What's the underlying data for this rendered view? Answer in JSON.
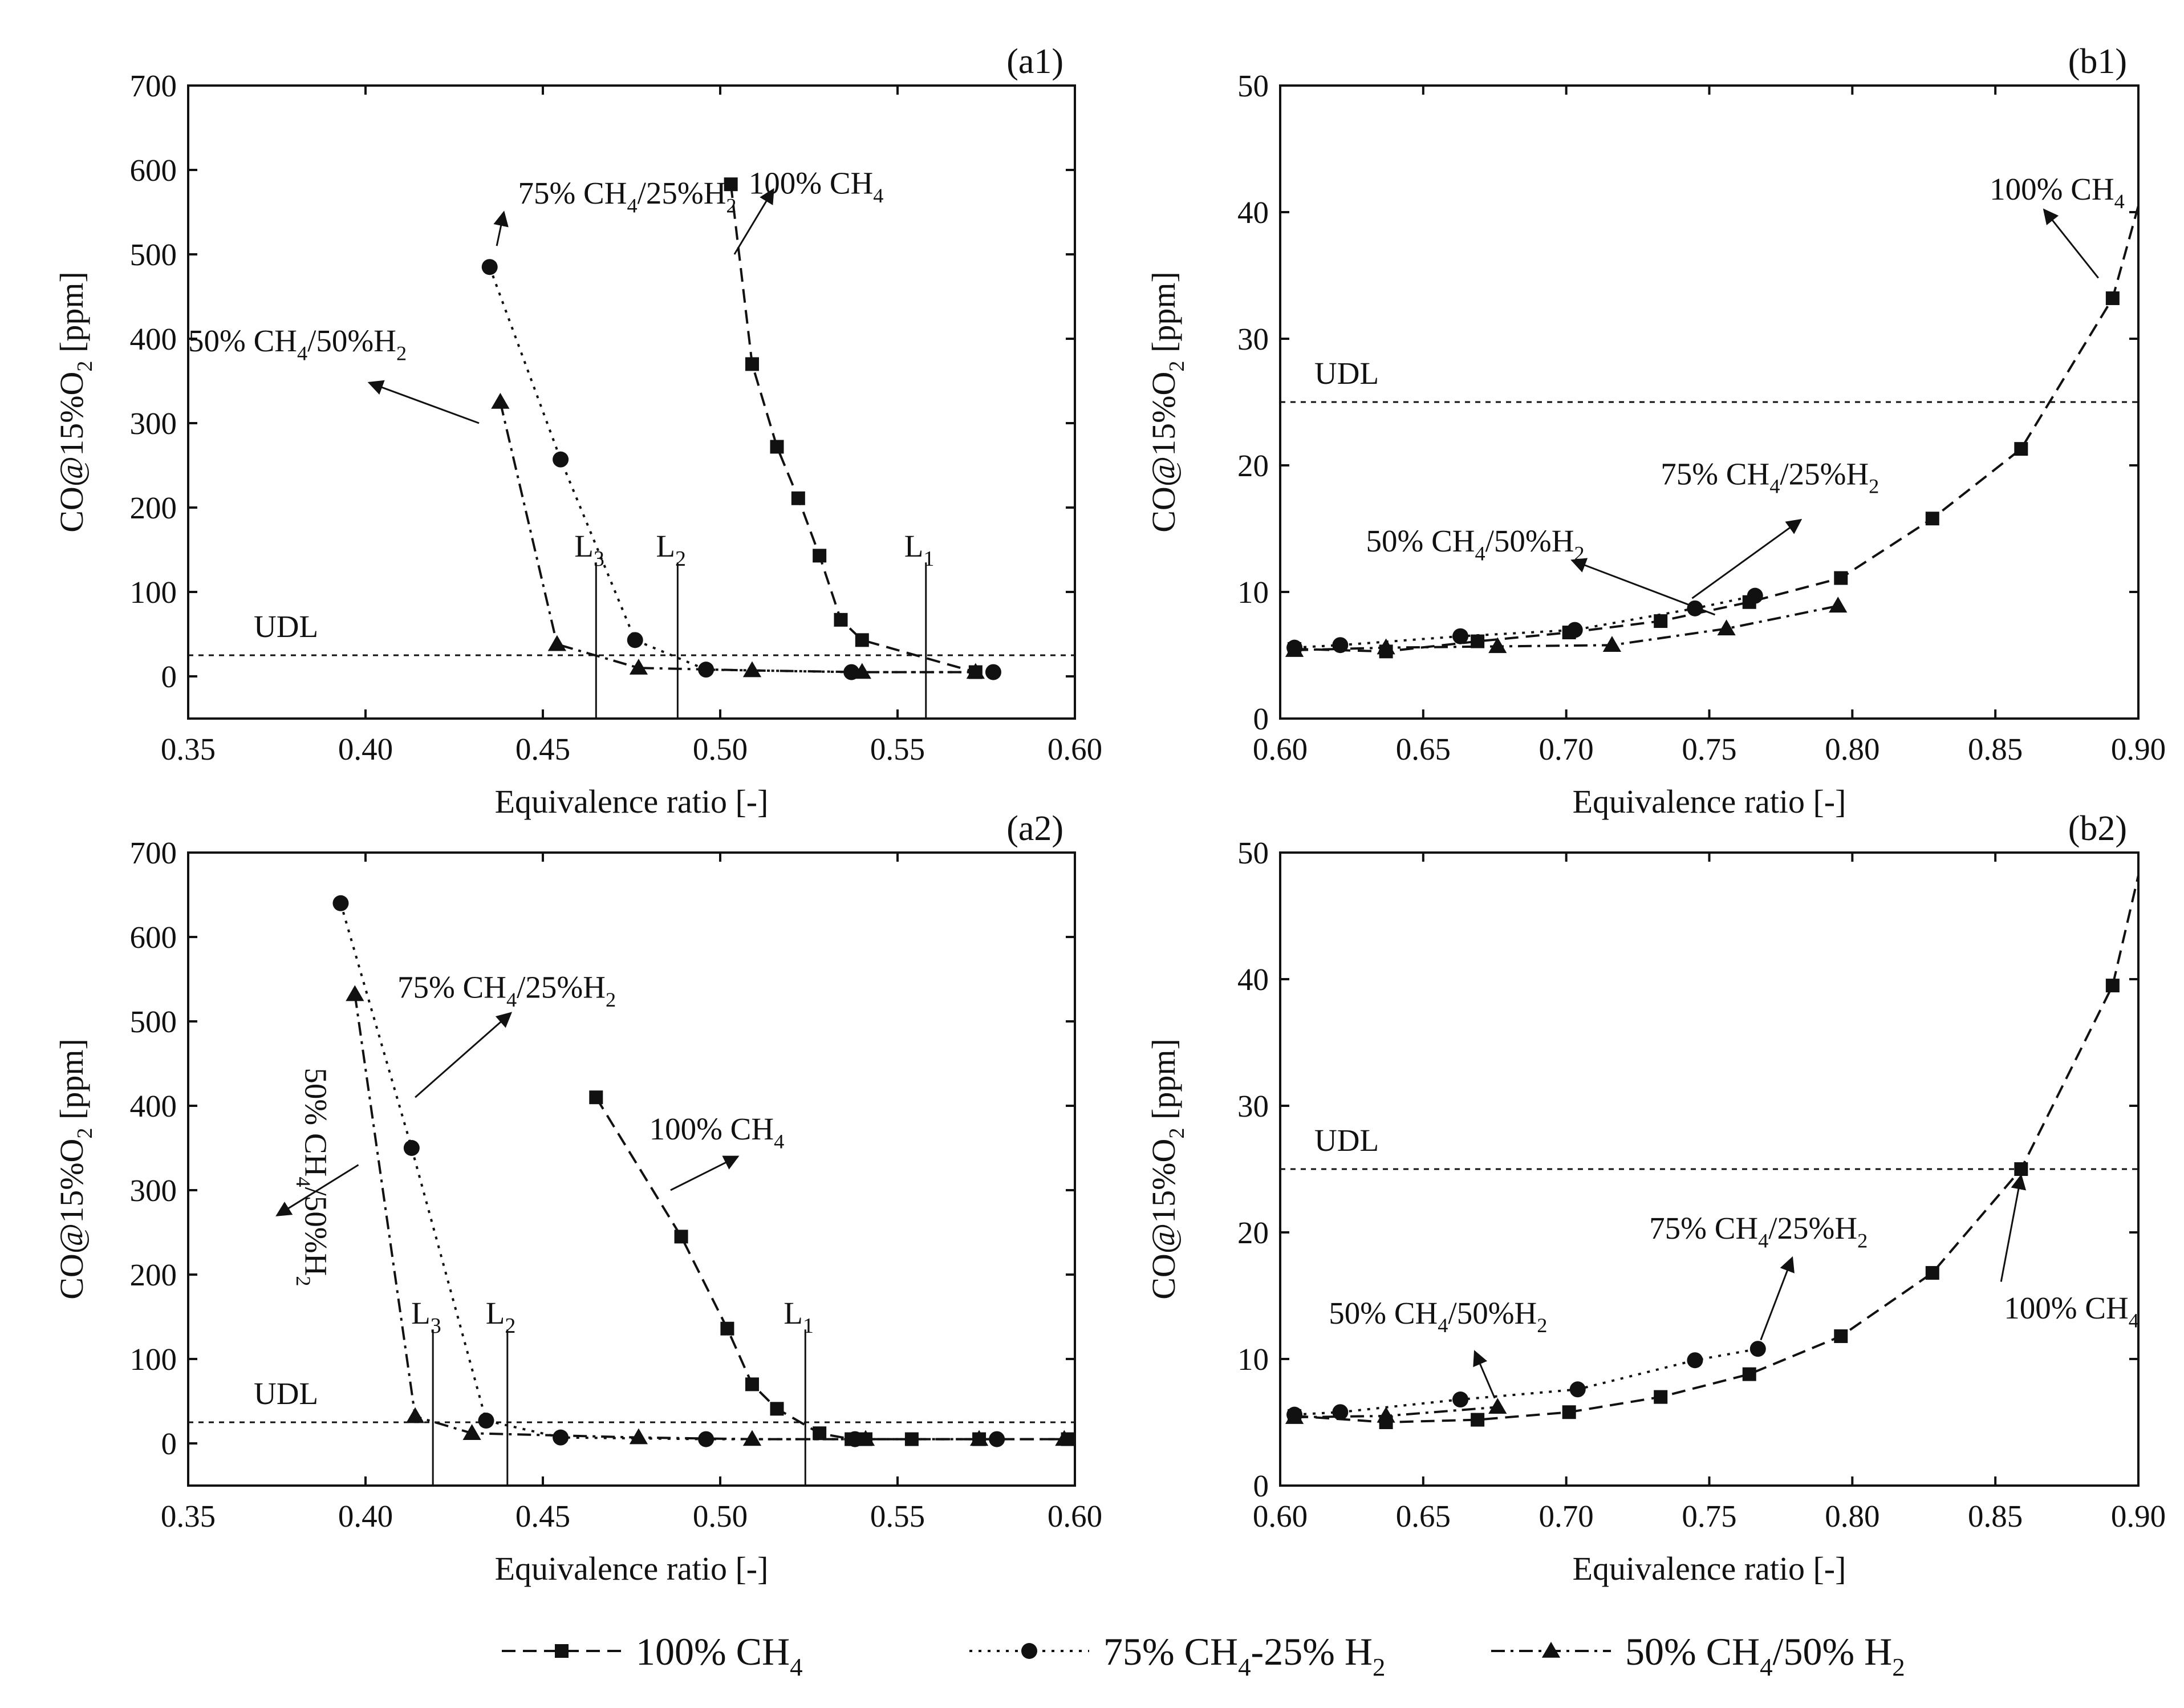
{
  "colors": {
    "ink": "#111111",
    "background": "#ffffff"
  },
  "legend": {
    "items": [
      {
        "key": "ch4",
        "label": "100% CH4",
        "marker": "square",
        "dash": "dashed"
      },
      {
        "key": "ch4h2_25",
        "label": "75% CH4-25% H2",
        "marker": "circle",
        "dash": "dotted"
      },
      {
        "key": "ch4h2_50",
        "label": "50% CH4/50% H2",
        "marker": "triangle",
        "dash": "dashdot"
      }
    ]
  },
  "chart_data": [
    {
      "id": "a1",
      "panel_label": "(a1)",
      "type": "line",
      "xlabel": "Equivalence ratio [-]",
      "ylabel": "CO@15%O2 [ppm]",
      "xlim": [
        0.35,
        0.6
      ],
      "ylim": [
        -50,
        700
      ],
      "xticks": [
        0.35,
        0.4,
        0.45,
        0.5,
        0.55,
        0.6
      ],
      "yticks": [
        0,
        100,
        200,
        300,
        400,
        500,
        600,
        700
      ],
      "xtick_decimals": 2,
      "udl": {
        "label": "UDL",
        "value": 25
      },
      "series": [
        {
          "name": "100% CH4",
          "marker": "square",
          "dash": "dashed",
          "points": [
            [
              0.503,
              583
            ],
            [
              0.509,
              370
            ],
            [
              0.516,
              272
            ],
            [
              0.522,
              211
            ],
            [
              0.528,
              143
            ],
            [
              0.534,
              67
            ],
            [
              0.54,
              43
            ],
            [
              0.572,
              5
            ]
          ]
        },
        {
          "name": "75% CH4/25%H2",
          "marker": "circle",
          "dash": "dotted",
          "points": [
            [
              0.435,
              485
            ],
            [
              0.455,
              257
            ],
            [
              0.476,
              43
            ],
            [
              0.496,
              8
            ],
            [
              0.537,
              5
            ],
            [
              0.577,
              5
            ]
          ]
        },
        {
          "name": "50% CH4/50%H2",
          "marker": "triangle",
          "dash": "dashdot",
          "points": [
            [
              0.438,
              325
            ],
            [
              0.454,
              38
            ],
            [
              0.477,
              10
            ],
            [
              0.509,
              7
            ],
            [
              0.54,
              5
            ],
            [
              0.572,
              5
            ]
          ]
        }
      ],
      "vlines": [
        {
          "label": "L",
          "sub": "3",
          "x": 0.465
        },
        {
          "label": "L",
          "sub": "2",
          "x": 0.488
        },
        {
          "label": "L",
          "sub": "1",
          "x": 0.558
        }
      ],
      "annotations": [
        {
          "text": "75% CH4/25%H2",
          "at": [
            0.443,
            560
          ],
          "to": [
            0.439,
            550
          ],
          "from": [
            0.437,
            510
          ]
        },
        {
          "text": "100% CH4",
          "at": [
            0.508,
            572
          ],
          "to": [
            0.515,
            577
          ],
          "from": [
            0.504,
            500
          ]
        },
        {
          "text": "50% CH4/50%H2",
          "at": [
            0.35,
            385
          ],
          "to": [
            0.401,
            348
          ],
          "from": [
            0.432,
            300
          ]
        }
      ]
    },
    {
      "id": "a2",
      "panel_label": "(a2)",
      "type": "line",
      "xlabel": "Equivalence ratio [-]",
      "ylabel": "CO@15%O2 [ppm]",
      "xlim": [
        0.35,
        0.6
      ],
      "ylim": [
        -50,
        700
      ],
      "xticks": [
        0.35,
        0.4,
        0.45,
        0.5,
        0.55,
        0.6
      ],
      "yticks": [
        0,
        100,
        200,
        300,
        400,
        500,
        600,
        700
      ],
      "xtick_decimals": 2,
      "udl": {
        "label": "UDL",
        "value": 25
      },
      "series": [
        {
          "name": "100% CH4",
          "marker": "square",
          "dash": "dashed",
          "points": [
            [
              0.465,
              410
            ],
            [
              0.489,
              245
            ],
            [
              0.502,
              136
            ],
            [
              0.509,
              70
            ],
            [
              0.516,
              41
            ],
            [
              0.528,
              12
            ],
            [
              0.537,
              5
            ],
            [
              0.541,
              5
            ],
            [
              0.554,
              5
            ],
            [
              0.573,
              5
            ],
            [
              0.598,
              5
            ]
          ]
        },
        {
          "name": "75% CH4/25%H2",
          "marker": "circle",
          "dash": "dotted",
          "points": [
            [
              0.393,
              640
            ],
            [
              0.413,
              350
            ],
            [
              0.434,
              27
            ],
            [
              0.455,
              7
            ],
            [
              0.496,
              5
            ],
            [
              0.538,
              5
            ],
            [
              0.578,
              5
            ]
          ]
        },
        {
          "name": "50% CH4/50%H2",
          "marker": "triangle",
          "dash": "dashdot",
          "points": [
            [
              0.397,
              532
            ],
            [
              0.414,
              32
            ],
            [
              0.43,
              12
            ],
            [
              0.477,
              7
            ],
            [
              0.509,
              5
            ],
            [
              0.541,
              5
            ],
            [
              0.573,
              5
            ],
            [
              0.597,
              5
            ]
          ]
        }
      ],
      "vlines": [
        {
          "label": "L",
          "sub": "3",
          "x": 0.419
        },
        {
          "label": "L",
          "sub": "2",
          "x": 0.44
        },
        {
          "label": "L",
          "sub": "1",
          "x": 0.524
        }
      ],
      "annotations": [
        {
          "text": "75% CH4/25%H2",
          "at": [
            0.409,
            528
          ],
          "to": [
            0.441,
            510
          ],
          "from": [
            0.414,
            410
          ]
        },
        {
          "text": "100% CH4",
          "at": [
            0.48,
            360
          ],
          "to": [
            0.505,
            340
          ],
          "from": [
            0.486,
            300
          ]
        },
        {
          "text": "50% CH4/50%H2",
          "at": [
            0.383,
            445
          ],
          "rotate": 90,
          "to": [
            0.375,
            270
          ],
          "from": [
            0.398,
            330
          ]
        }
      ]
    },
    {
      "id": "b1",
      "panel_label": "(b1)",
      "type": "line",
      "xlabel": "Equivalence ratio [-]",
      "ylabel": "CO@15%O2 [ppm]",
      "xlim": [
        0.6,
        0.9
      ],
      "ylim": [
        0,
        50
      ],
      "xticks": [
        0.6,
        0.65,
        0.7,
        0.75,
        0.8,
        0.85,
        0.9
      ],
      "yticks": [
        0,
        10,
        20,
        30,
        40,
        50
      ],
      "xtick_decimals": 2,
      "udl": {
        "label": "UDL",
        "value": 25
      },
      "series": [
        {
          "name": "100% CH4",
          "marker": "square",
          "dash": "dashed",
          "curve_end": [
            0.9,
            40.5
          ],
          "points": [
            [
              0.605,
              5.5
            ],
            [
              0.637,
              5.3
            ],
            [
              0.669,
              6.1
            ],
            [
              0.701,
              6.8
            ],
            [
              0.733,
              7.7
            ],
            [
              0.764,
              9.2
            ],
            [
              0.796,
              11.1
            ],
            [
              0.828,
              15.8
            ],
            [
              0.859,
              21.3
            ],
            [
              0.891,
              33.2
            ]
          ]
        },
        {
          "name": "75% CH4/25%H2",
          "marker": "circle",
          "dash": "dotted",
          "points": [
            [
              0.605,
              5.6
            ],
            [
              0.621,
              5.8
            ],
            [
              0.663,
              6.5
            ],
            [
              0.703,
              7.0
            ],
            [
              0.745,
              8.7
            ],
            [
              0.766,
              9.7
            ]
          ]
        },
        {
          "name": "50% CH4/50%H2",
          "marker": "triangle",
          "dash": "dashdot",
          "points": [
            [
              0.605,
              5.4
            ],
            [
              0.637,
              5.6
            ],
            [
              0.676,
              5.7
            ],
            [
              0.716,
              5.8
            ],
            [
              0.756,
              7.1
            ],
            [
              0.795,
              8.9
            ]
          ]
        }
      ],
      "vlines": [],
      "annotations": [
        {
          "text": "100% CH4",
          "at": [
            0.848,
            41.0
          ],
          "to": [
            0.867,
            40.2
          ],
          "from": [
            0.886,
            34.8
          ]
        },
        {
          "text": "75% CH4/25%H2",
          "at": [
            0.733,
            18.5
          ],
          "to": [
            0.782,
            15.7
          ],
          "from": [
            0.744,
            9.5
          ]
        },
        {
          "text": "50% CH4/50%H2",
          "at": [
            0.63,
            13.2
          ],
          "to": [
            0.702,
            12.5
          ],
          "from": [
            0.752,
            8.2
          ]
        }
      ]
    },
    {
      "id": "b2",
      "panel_label": "(b2)",
      "type": "line",
      "xlabel": "Equivalence ratio [-]",
      "ylabel": "CO@15%O2 [ppm]",
      "xlim": [
        0.6,
        0.9
      ],
      "ylim": [
        0,
        50
      ],
      "xticks": [
        0.6,
        0.65,
        0.7,
        0.75,
        0.8,
        0.85,
        0.9
      ],
      "yticks": [
        0,
        10,
        20,
        30,
        40,
        50
      ],
      "xtick_decimals": 2,
      "udl": {
        "label": "UDL",
        "value": 25
      },
      "series": [
        {
          "name": "100% CH4",
          "marker": "square",
          "dash": "dashed",
          "curve_end": [
            0.9,
            48.2
          ],
          "points": [
            [
              0.605,
              5.5
            ],
            [
              0.637,
              5.0
            ],
            [
              0.669,
              5.2
            ],
            [
              0.701,
              5.8
            ],
            [
              0.733,
              7.0
            ],
            [
              0.764,
              8.8
            ],
            [
              0.796,
              11.8
            ],
            [
              0.828,
              16.8
            ],
            [
              0.859,
              25.0
            ],
            [
              0.891,
              39.5
            ]
          ]
        },
        {
          "name": "75% CH4/25%H2",
          "marker": "circle",
          "dash": "dotted",
          "points": [
            [
              0.605,
              5.6
            ],
            [
              0.621,
              5.8
            ],
            [
              0.663,
              6.8
            ],
            [
              0.704,
              7.6
            ],
            [
              0.745,
              9.9
            ],
            [
              0.767,
              10.8
            ]
          ]
        },
        {
          "name": "50% CH4/50%H2",
          "marker": "triangle",
          "dash": "dashdot",
          "points": [
            [
              0.605,
              5.4
            ],
            [
              0.637,
              5.5
            ],
            [
              0.676,
              6.2
            ]
          ]
        }
      ],
      "vlines": [],
      "annotations": [
        {
          "text": "100% CH4",
          "at": [
            0.853,
            13.2
          ],
          "to": [
            0.859,
            24.5
          ],
          "from": [
            0.852,
            16.1
          ]
        },
        {
          "text": "75% CH4/25%H2",
          "at": [
            0.729,
            19.5
          ],
          "to": [
            0.779,
            18.0
          ],
          "from": [
            0.768,
            11.5
          ]
        },
        {
          "text": "50% CH4/50%H2",
          "at": [
            0.617,
            12.8
          ],
          "to": [
            0.668,
            10.6
          ],
          "from": [
            0.675,
            6.9
          ]
        }
      ]
    }
  ]
}
